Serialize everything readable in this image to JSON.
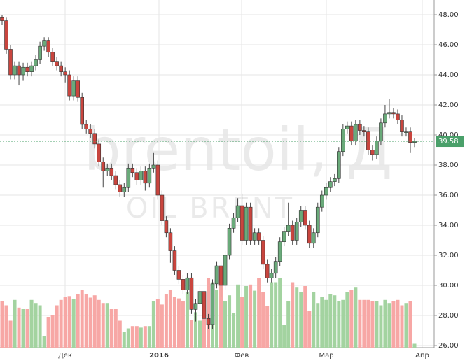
{
  "chart_data": {
    "type": "candlestick",
    "watermark": "brentoil, Д",
    "watermark_sub": "OIL BRENT",
    "x_labels": [
      "Дек",
      "2016",
      "Фев",
      "Мар",
      "Апр"
    ],
    "ylim": [
      26,
      48
    ],
    "yticks": [
      {
        "value": 26,
        "label": "26.00"
      },
      {
        "value": 28,
        "label": "28.00"
      },
      {
        "value": 30,
        "label": "30.00"
      },
      {
        "value": 32,
        "label": "32.00"
      },
      {
        "value": 34,
        "label": "34.00"
      },
      {
        "value": 36,
        "label": "36.00"
      },
      {
        "value": 38,
        "label": "38.00"
      },
      {
        "value": 40,
        "label": "40.00"
      },
      {
        "value": 42,
        "label": "42.00"
      },
      {
        "value": 44,
        "label": "44.00"
      },
      {
        "value": 46,
        "label": "46.00"
      },
      {
        "value": 48,
        "label": "48.00"
      }
    ],
    "grid": true,
    "up_color": "#6aaa7a",
    "down_color": "#c9453e",
    "volume_up_color": "#a3d3a0",
    "volume_down_color": "#f7a7a5",
    "last_color": "#4aa06a",
    "open": [
      47.8,
      47.6,
      45.7,
      44.0,
      44.6,
      44.0,
      44.5,
      44.2,
      44.6,
      45.0,
      45.9,
      46.3,
      45.5,
      44.9,
      44.6,
      44.2,
      44.0,
      42.6,
      43.6,
      42.5,
      40.7,
      40.4,
      40.1,
      39.4,
      38.2,
      37.6,
      37.8,
      37.3,
      36.7,
      36.2,
      36.5,
      37.8,
      37.5,
      37.0,
      37.6,
      36.8,
      37.8,
      38.0,
      36.0,
      34.3,
      33.5,
      32.3,
      31.0,
      30.4,
      29.7,
      30.5,
      28.4,
      28.8,
      29.6,
      27.8,
      27.4,
      30.1,
      31.3,
      30.0,
      32.0,
      33.8,
      34.5,
      35.3,
      33.0,
      35.2,
      33.0,
      33.5,
      33.0,
      31.4,
      30.5,
      30.8,
      31.6,
      32.9,
      33.6,
      34.0,
      33.0,
      34.2,
      35.0,
      34.0,
      32.8,
      33.5,
      35.2,
      36.0,
      36.5,
      36.9,
      37.1,
      38.9,
      40.4,
      40.6,
      39.6,
      40.7,
      40.3,
      40.2,
      39.0,
      38.7,
      39.6,
      40.8,
      41.4,
      41.5,
      41.4,
      41.0,
      40.2,
      40.2,
      39.5
    ],
    "high": [
      48.0,
      47.8,
      46.0,
      44.9,
      44.9,
      44.8,
      44.8,
      44.9,
      45.3,
      46.2,
      46.5,
      46.5,
      45.8,
      45.2,
      44.9,
      44.5,
      44.3,
      43.9,
      43.9,
      42.8,
      41.0,
      40.7,
      40.4,
      39.7,
      38.5,
      38.1,
      38.1,
      37.6,
      37.0,
      36.8,
      38.1,
      38.1,
      37.8,
      37.9,
      37.9,
      38.1,
      38.8,
      38.3,
      36.3,
      34.6,
      33.8,
      32.6,
      31.3,
      30.7,
      30.8,
      30.8,
      29.1,
      29.9,
      29.9,
      28.1,
      30.4,
      31.6,
      31.6,
      32.3,
      34.1,
      34.8,
      35.8,
      36.1,
      35.5,
      35.5,
      33.8,
      33.8,
      33.3,
      31.7,
      31.1,
      31.9,
      33.2,
      33.9,
      35.5,
      34.3,
      34.5,
      35.3,
      35.3,
      34.3,
      33.8,
      35.5,
      36.3,
      36.8,
      37.2,
      37.4,
      39.2,
      40.7,
      40.9,
      40.9,
      41.0,
      41.0,
      40.6,
      40.5,
      39.3,
      39.9,
      41.1,
      42.0,
      42.4,
      41.8,
      41.7,
      41.3,
      40.5,
      40.5,
      39.8
    ],
    "low": [
      47.3,
      45.4,
      43.7,
      43.7,
      43.3,
      43.6,
      43.9,
      43.9,
      44.3,
      44.7,
      45.6,
      45.2,
      44.6,
      44.3,
      43.9,
      43.5,
      42.3,
      42.3,
      42.2,
      40.4,
      40.1,
      39.8,
      39.1,
      37.9,
      36.5,
      37.3,
      37.0,
      36.4,
      35.9,
      35.9,
      36.2,
      37.2,
      36.7,
      36.7,
      36.3,
      36.5,
      37.5,
      35.7,
      34.0,
      33.2,
      31.5,
      30.7,
      30.1,
      29.4,
      29.4,
      28.1,
      27.6,
      28.5,
      27.5,
      27.1,
      27.1,
      29.8,
      29.2,
      29.7,
      31.7,
      33.5,
      34.2,
      32.7,
      32.7,
      32.7,
      32.7,
      32.7,
      31.1,
      30.2,
      30.2,
      30.5,
      31.3,
      32.6,
      33.3,
      32.7,
      32.7,
      33.9,
      33.7,
      32.5,
      32.5,
      33.2,
      34.9,
      35.7,
      36.2,
      36.6,
      36.8,
      38.6,
      40.1,
      39.3,
      39.3,
      40.0,
      39.9,
      38.7,
      38.3,
      38.4,
      39.3,
      40.5,
      41.1,
      41.1,
      40.7,
      39.9,
      39.9,
      38.8,
      39.2
    ],
    "close": [
      47.6,
      45.7,
      44.0,
      44.6,
      44.0,
      44.5,
      44.2,
      44.6,
      45.0,
      45.9,
      46.3,
      45.5,
      44.9,
      44.6,
      44.2,
      44.0,
      42.6,
      43.6,
      42.5,
      40.7,
      40.4,
      40.1,
      39.4,
      38.2,
      37.6,
      37.8,
      37.3,
      36.7,
      36.2,
      36.5,
      37.8,
      37.5,
      37.0,
      37.6,
      36.8,
      37.8,
      38.0,
      36.0,
      34.3,
      33.5,
      32.3,
      31.0,
      30.4,
      29.7,
      30.5,
      28.4,
      28.8,
      29.6,
      27.8,
      27.4,
      30.1,
      31.3,
      30.0,
      32.0,
      33.8,
      34.5,
      35.3,
      33.0,
      35.2,
      33.0,
      33.5,
      33.0,
      31.4,
      30.5,
      30.8,
      31.6,
      32.9,
      33.6,
      34.0,
      33.0,
      34.2,
      35.0,
      34.0,
      32.8,
      33.5,
      35.2,
      36.0,
      36.5,
      36.9,
      37.1,
      38.9,
      40.4,
      40.6,
      39.6,
      40.7,
      40.3,
      40.2,
      39.0,
      38.7,
      39.6,
      40.8,
      41.4,
      41.5,
      41.4,
      41.0,
      40.2,
      40.2,
      39.5,
      39.58
    ],
    "volume": [
      60,
      55,
      35,
      62,
      52,
      50,
      50,
      62,
      58,
      55,
      15,
      40,
      42,
      55,
      62,
      66,
      67,
      63,
      70,
      75,
      70,
      65,
      68,
      62,
      58,
      58,
      50,
      50,
      35,
      20,
      25,
      28,
      28,
      26,
      28,
      28,
      60,
      63,
      56,
      70,
      75,
      66,
      64,
      60,
      72,
      36,
      46,
      35,
      55,
      90,
      85,
      75,
      85,
      60,
      68,
      45,
      82,
      66,
      80,
      82,
      74,
      90,
      72,
      54,
      85,
      85,
      90,
      30,
      60,
      85,
      78,
      72,
      80,
      48,
      72,
      58,
      66,
      62,
      70,
      68,
      60,
      62,
      72,
      75,
      78,
      62,
      62,
      62,
      60,
      60,
      55,
      62,
      58,
      60,
      62,
      55,
      58,
      60,
      5
    ],
    "volume_lim": [
      0,
      100
    ]
  }
}
